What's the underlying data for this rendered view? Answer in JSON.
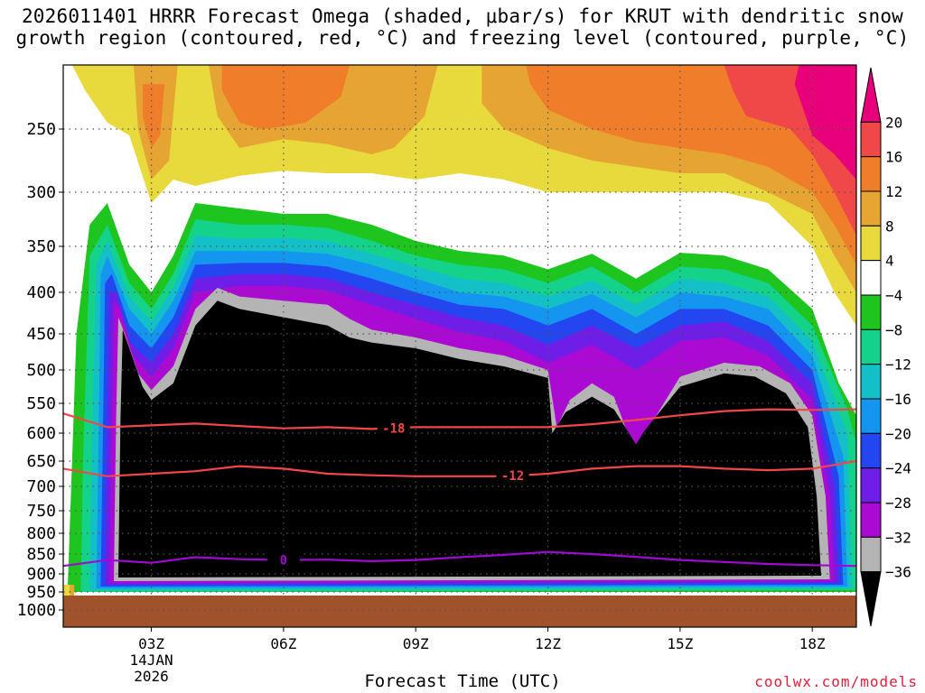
{
  "title_lines": [
    "2026011401 HRRR Forecast Omega (shaded, μbar/s) for KRUT with dendritic snow",
    "growth region (contoured, red, °C) and freezing level (contoured, purple, °C)"
  ],
  "credit": "coolwx.com/models",
  "chart_data": {
    "type": "time-height contour",
    "title": "2026011401 HRRR Forecast Omega (shaded, μbar/s) for KRUT with dendritic snow growth region (contoured, red, °C) and freezing level (contoured, purple, °C)",
    "xlabel": "Forecast Time (UTC)",
    "x_ticks": [
      {
        "hour": 3,
        "label": "03Z"
      },
      {
        "hour": 6,
        "label": "06Z"
      },
      {
        "hour": 9,
        "label": "09Z"
      },
      {
        "hour": 12,
        "label": "12Z"
      },
      {
        "hour": 15,
        "label": "15Z"
      },
      {
        "hour": 18,
        "label": "18Z"
      }
    ],
    "x_date_label": [
      "14JAN",
      "2026"
    ],
    "x_range_hours": [
      1,
      19
    ],
    "y_ticks_hPa": [
      250,
      300,
      350,
      400,
      450,
      500,
      550,
      600,
      650,
      700,
      750,
      800,
      850,
      900,
      950,
      1000
    ],
    "y_range_hPa": [
      200,
      1000
    ],
    "ground_level_hPa": 960,
    "colorbar": {
      "labels": [
        "20",
        "16",
        "12",
        "8",
        "4",
        "−4",
        "−8",
        "−12",
        "−16",
        "−20",
        "−24",
        "−28",
        "−32",
        "−36"
      ],
      "colors": [
        "#e8007a",
        "#f04848",
        "#ef7d2a",
        "#e6a532",
        "#e8da3c",
        "#ffffff",
        "#1ec51e",
        "#14d28a",
        "#14c0c8",
        "#1496f0",
        "#2446f0",
        "#6e1ee6",
        "#aa0ad2",
        "#b4b4b4",
        "#000000"
      ]
    },
    "omega_regions": [
      {
        "name": "Strong ascent (< -36 μbar/s)",
        "time_hours": [
          2,
          18.5
        ],
        "pressure_hPa": [
          420,
          940
        ]
      },
      {
        "name": "Strong subsidence (> 20 μbar/s)",
        "time_hours": [
          17.5,
          19
        ],
        "pressure_hPa": [
          200,
          270
        ]
      }
    ],
    "contours": [
      {
        "label": "-18",
        "name": "dendritic growth upper (°C)",
        "color": "#f04848",
        "x": [
          1,
          2,
          3,
          4,
          5,
          6,
          7,
          8,
          9,
          10,
          11,
          12,
          13,
          14,
          15,
          16,
          17,
          18,
          19
        ],
        "y": [
          567,
          590,
          587,
          584,
          588,
          592,
          590,
          593,
          590,
          590,
          590,
          590,
          585,
          578,
          570,
          563,
          560,
          561,
          560
        ]
      },
      {
        "label": "-12",
        "name": "dendritic growth lower (°C)",
        "color": "#f04848",
        "x": [
          1,
          2,
          3,
          4,
          5,
          6,
          7,
          8,
          9,
          10,
          11,
          12,
          13,
          14,
          15,
          16,
          17,
          18,
          19
        ],
        "y": [
          665,
          680,
          675,
          670,
          660,
          665,
          675,
          678,
          680,
          680,
          680,
          675,
          665,
          660,
          660,
          665,
          668,
          665,
          650
        ]
      },
      {
        "label": "0",
        "name": "freezing level (°C)",
        "color": "#a00ad0",
        "x": [
          1,
          2,
          3,
          4,
          5,
          6,
          7,
          8,
          9,
          10,
          11,
          12,
          13,
          14,
          15,
          16,
          17,
          18,
          19
        ],
        "y": [
          880,
          865,
          872,
          858,
          863,
          865,
          864,
          868,
          865,
          858,
          852,
          845,
          850,
          857,
          865,
          870,
          875,
          878,
          880
        ]
      }
    ]
  }
}
